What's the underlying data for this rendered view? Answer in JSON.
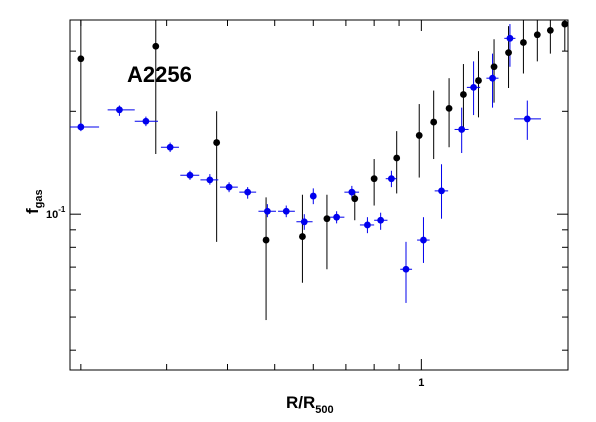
{
  "chart_data": {
    "type": "scatter",
    "title": "",
    "annotation": "A2256",
    "xlabel": {
      "main": "R/R",
      "sub": "500"
    },
    "ylabel": {
      "main": "f",
      "sub": "gas"
    },
    "xscale": "log",
    "yscale": "log",
    "xlim": [
      0.19,
      2.0
    ],
    "ylim": [
      0.035,
      0.37
    ],
    "x_tick_labels": [
      {
        "value": 1,
        "label": "1"
      }
    ],
    "y_tick_labels": [
      {
        "value": 0.1,
        "label": "10",
        "exponent": "-1"
      }
    ],
    "grid": false,
    "series": [
      {
        "color": "#000000",
        "points": [
          {
            "x": 0.2,
            "y": 0.285,
            "ylo": 0.18,
            "yhi": 0.37
          },
          {
            "x": 0.285,
            "y": 0.31,
            "ylo": 0.15,
            "yhi": 0.37
          },
          {
            "x": 0.38,
            "y": 0.162,
            "ylo": 0.083,
            "yhi": 0.2
          },
          {
            "x": 0.48,
            "y": 0.084,
            "ylo": 0.049,
            "yhi": 0.112
          },
          {
            "x": 0.57,
            "y": 0.086,
            "ylo": 0.063,
            "yhi": 0.114
          },
          {
            "x": 0.64,
            "y": 0.097,
            "ylo": 0.069,
            "yhi": 0.114
          },
          {
            "x": 0.73,
            "y": 0.111,
            "ylo": 0.096,
            "yhi": 0.117
          },
          {
            "x": 0.8,
            "y": 0.127,
            "ylo": 0.106,
            "yhi": 0.145
          },
          {
            "x": 0.89,
            "y": 0.146,
            "ylo": 0.115,
            "yhi": 0.175
          },
          {
            "x": 0.99,
            "y": 0.17,
            "ylo": 0.128,
            "yhi": 0.21
          },
          {
            "x": 1.06,
            "y": 0.186,
            "ylo": 0.145,
            "yhi": 0.23
          },
          {
            "x": 1.14,
            "y": 0.204,
            "ylo": 0.157,
            "yhi": 0.25
          },
          {
            "x": 1.22,
            "y": 0.224,
            "ylo": 0.177,
            "yhi": 0.275
          },
          {
            "x": 1.31,
            "y": 0.246,
            "ylo": 0.192,
            "yhi": 0.3
          },
          {
            "x": 1.41,
            "y": 0.27,
            "ylo": 0.212,
            "yhi": 0.325
          },
          {
            "x": 1.51,
            "y": 0.297,
            "ylo": 0.234,
            "yhi": 0.355
          },
          {
            "x": 1.62,
            "y": 0.318,
            "ylo": 0.258,
            "yhi": 0.37
          },
          {
            "x": 1.73,
            "y": 0.335,
            "ylo": 0.28,
            "yhi": 0.37
          },
          {
            "x": 1.84,
            "y": 0.345,
            "ylo": 0.295,
            "yhi": 0.37
          },
          {
            "x": 1.97,
            "y": 0.36,
            "ylo": 0.3,
            "yhi": 0.37
          }
        ]
      },
      {
        "color": "#0000ee",
        "points": [
          {
            "x": 0.2,
            "y": 0.18,
            "xlo": 0.19,
            "xhi": 0.218,
            "ylo": 0.175,
            "yhi": 0.185
          },
          {
            "x": 0.24,
            "y": 0.202,
            "xlo": 0.227,
            "xhi": 0.258,
            "ylo": 0.194,
            "yhi": 0.208
          },
          {
            "x": 0.272,
            "y": 0.187,
            "xlo": 0.258,
            "xhi": 0.288,
            "ylo": 0.181,
            "yhi": 0.193
          },
          {
            "x": 0.305,
            "y": 0.157,
            "xlo": 0.292,
            "xhi": 0.318,
            "ylo": 0.152,
            "yhi": 0.162
          },
          {
            "x": 0.335,
            "y": 0.13,
            "xlo": 0.32,
            "xhi": 0.35,
            "ylo": 0.126,
            "yhi": 0.134
          },
          {
            "x": 0.368,
            "y": 0.126,
            "xlo": 0.352,
            "xhi": 0.383,
            "ylo": 0.122,
            "yhi": 0.131
          },
          {
            "x": 0.403,
            "y": 0.12,
            "xlo": 0.386,
            "xhi": 0.42,
            "ylo": 0.116,
            "yhi": 0.124
          },
          {
            "x": 0.44,
            "y": 0.116,
            "xlo": 0.423,
            "xhi": 0.458,
            "ylo": 0.111,
            "yhi": 0.12
          },
          {
            "x": 0.483,
            "y": 0.102,
            "xlo": 0.463,
            "xhi": 0.503,
            "ylo": 0.098,
            "yhi": 0.107
          },
          {
            "x": 0.528,
            "y": 0.102,
            "xlo": 0.508,
            "xhi": 0.55,
            "ylo": 0.098,
            "yhi": 0.106
          },
          {
            "x": 0.575,
            "y": 0.095,
            "xlo": 0.554,
            "xhi": 0.598,
            "ylo": 0.09,
            "yhi": 0.1
          },
          {
            "x": 0.6,
            "y": 0.113,
            "xlo": 0.6,
            "xhi": 0.605,
            "ylo": 0.107,
            "yhi": 0.119
          },
          {
            "x": 0.67,
            "y": 0.098,
            "xlo": 0.645,
            "xhi": 0.695,
            "ylo": 0.094,
            "yhi": 0.102
          },
          {
            "x": 0.72,
            "y": 0.116,
            "xlo": 0.695,
            "xhi": 0.745,
            "ylo": 0.111,
            "yhi": 0.121
          },
          {
            "x": 0.775,
            "y": 0.093,
            "xlo": 0.748,
            "xhi": 0.8,
            "ylo": 0.088,
            "yhi": 0.098
          },
          {
            "x": 0.825,
            "y": 0.096,
            "xlo": 0.8,
            "xhi": 0.852,
            "ylo": 0.09,
            "yhi": 0.101
          },
          {
            "x": 0.868,
            "y": 0.127,
            "xlo": 0.845,
            "xhi": 0.89,
            "ylo": 0.12,
            "yhi": 0.134
          },
          {
            "x": 0.93,
            "y": 0.069,
            "xlo": 0.905,
            "xhi": 0.957,
            "ylo": 0.055,
            "yhi": 0.083
          },
          {
            "x": 1.01,
            "y": 0.084,
            "xlo": 0.98,
            "xhi": 1.04,
            "ylo": 0.072,
            "yhi": 0.098
          },
          {
            "x": 1.1,
            "y": 0.117,
            "xlo": 1.065,
            "xhi": 1.135,
            "ylo": 0.097,
            "yhi": 0.14
          },
          {
            "x": 1.21,
            "y": 0.177,
            "xlo": 1.17,
            "xhi": 1.25,
            "ylo": 0.151,
            "yhi": 0.205
          },
          {
            "x": 1.28,
            "y": 0.235,
            "xlo": 1.24,
            "xhi": 1.32,
            "ylo": 0.195,
            "yhi": 0.28
          },
          {
            "x": 1.4,
            "y": 0.25,
            "xlo": 1.36,
            "xhi": 1.44,
            "ylo": 0.205,
            "yhi": 0.295
          },
          {
            "x": 1.52,
            "y": 0.327,
            "xlo": 1.48,
            "xhi": 1.56,
            "ylo": 0.27,
            "yhi": 0.36
          },
          {
            "x": 1.65,
            "y": 0.19,
            "xlo": 1.55,
            "xhi": 1.76,
            "ylo": 0.165,
            "yhi": 0.215
          }
        ]
      }
    ]
  }
}
